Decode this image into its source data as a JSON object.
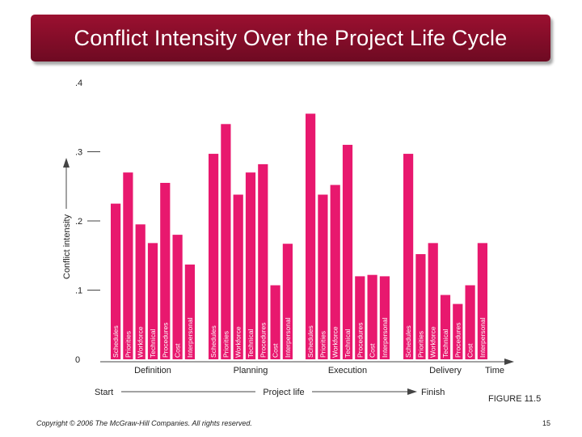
{
  "slide": {
    "title": "Conflict Intensity Over the Project Life Cycle",
    "figure_label": "FIGURE 11.5",
    "copyright": "Copyright © 2006 The McGraw-Hill Companies. All rights reserved.",
    "page_number": "15"
  },
  "colors": {
    "bar": "#e8186e",
    "title_bg": "#861032",
    "axis": "#444444",
    "text": "#222222"
  },
  "chart_data": {
    "type": "bar",
    "ylabel": "Conflict intensity",
    "ylim": [
      0,
      0.4
    ],
    "yticks": [
      {
        "value": 0,
        "label": "0"
      },
      {
        "value": 0.1,
        "label": ".1"
      },
      {
        "value": 0.2,
        "label": ".2"
      },
      {
        "value": 0.3,
        "label": ".3"
      },
      {
        "value": 0.4,
        "label": ".4"
      }
    ],
    "xaxis_end_label": "Time",
    "bottom_axis": {
      "start_label": "Start",
      "middle_label": "Project life",
      "end_label": "Finish"
    },
    "phases": [
      {
        "name": "Definition",
        "bars": [
          {
            "label": "Schedules",
            "value": 0.225
          },
          {
            "label": "Priorities",
            "value": 0.27
          },
          {
            "label": "Workforce",
            "value": 0.195
          },
          {
            "label": "Technical",
            "value": 0.168
          },
          {
            "label": "Procedures",
            "value": 0.255
          },
          {
            "label": "Cost",
            "value": 0.18
          },
          {
            "label": "Interpersonal",
            "value": 0.137
          }
        ]
      },
      {
        "name": "Planning",
        "bars": [
          {
            "label": "Schedules",
            "value": 0.297
          },
          {
            "label": "Priorities",
            "value": 0.34
          },
          {
            "label": "Workforce",
            "value": 0.238
          },
          {
            "label": "Technical",
            "value": 0.27
          },
          {
            "label": "Procedures",
            "value": 0.282
          },
          {
            "label": "Cost",
            "value": 0.107
          },
          {
            "label": "Interpersonal",
            "value": 0.167
          }
        ]
      },
      {
        "name": "Execution",
        "bars": [
          {
            "label": "Schedules",
            "value": 0.355
          },
          {
            "label": "Priorities",
            "value": 0.238
          },
          {
            "label": "Workforce",
            "value": 0.252
          },
          {
            "label": "Technical",
            "value": 0.31
          },
          {
            "label": "Procedures",
            "value": 0.12
          },
          {
            "label": "Cost",
            "value": 0.122
          },
          {
            "label": "Interpersonal",
            "value": 0.12
          }
        ]
      },
      {
        "name": "Delivery",
        "bars": [
          {
            "label": "Schedules",
            "value": 0.297
          },
          {
            "label": "Priorities",
            "value": 0.152
          },
          {
            "label": "Workforce",
            "value": 0.168
          },
          {
            "label": "Technical",
            "value": 0.093
          },
          {
            "label": "Procedures",
            "value": 0.08
          },
          {
            "label": "Cost",
            "value": 0.107
          },
          {
            "label": "Interpersonal",
            "value": 0.168
          }
        ]
      }
    ]
  }
}
